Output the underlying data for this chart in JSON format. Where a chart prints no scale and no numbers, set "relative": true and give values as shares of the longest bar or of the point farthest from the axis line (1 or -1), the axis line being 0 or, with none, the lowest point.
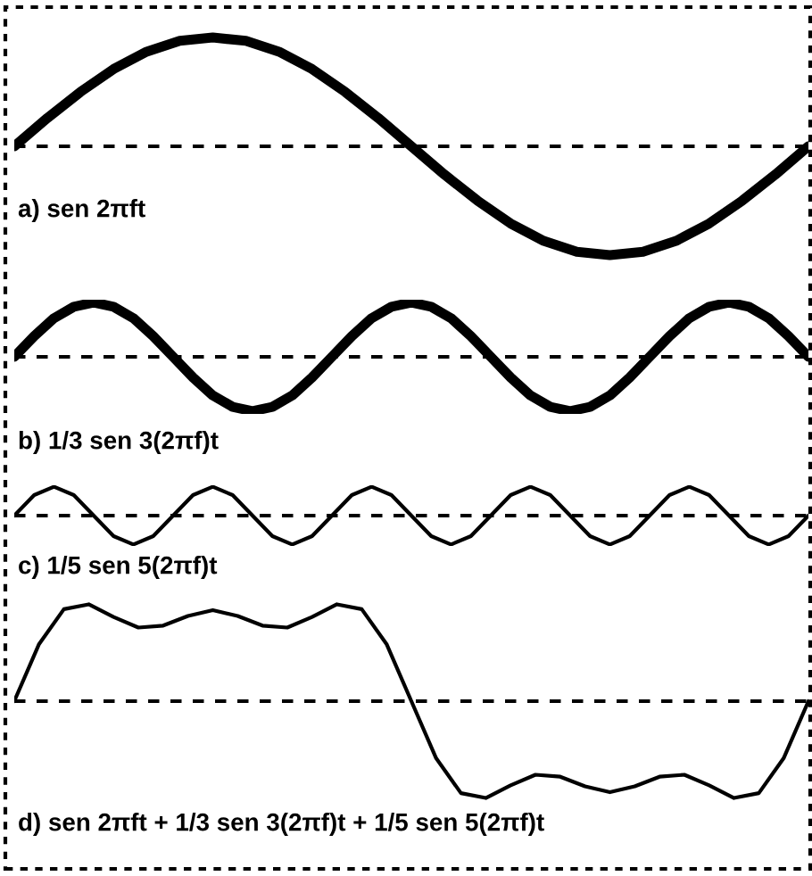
{
  "chart_data": [
    {
      "type": "line",
      "relative": true,
      "categories": [
        null,
        null,
        null,
        null,
        null,
        null,
        null,
        null,
        null,
        null,
        null,
        null,
        null,
        null,
        null,
        null,
        null,
        null,
        null,
        null,
        null,
        null,
        null,
        null,
        null
      ],
      "series": [
        {
          "color": "#000000",
          "values": [
            0,
            0.26,
            0.5,
            0.71,
            0.87,
            0.97,
            1,
            0.97,
            0.87,
            0.71,
            0.5,
            0.26,
            0,
            -0.26,
            -0.5,
            -0.71,
            -0.87,
            -0.97,
            -1,
            -0.97,
            -0.87,
            -0.71,
            -0.5,
            -0.26,
            0
          ]
        }
      ],
      "ref_lines": [
        {
          "axis": "y",
          "value": 0,
          "line_style": "dashed"
        }
      ],
      "annotations": [
        "a) sen 2πft"
      ]
    },
    {
      "type": "line",
      "relative": true,
      "categories": [
        null,
        null,
        null,
        null,
        null,
        null,
        null,
        null,
        null,
        null,
        null,
        null,
        null,
        null,
        null,
        null,
        null,
        null,
        null,
        null,
        null,
        null,
        null,
        null,
        null,
        null,
        null,
        null,
        null,
        null,
        null,
        null,
        null,
        null,
        null,
        null,
        null,
        null,
        null,
        null,
        null
      ],
      "series": [
        {
          "color": "#000000",
          "values": [
            0,
            0.38,
            0.71,
            0.92,
            1,
            0.92,
            0.71,
            0.38,
            0,
            -0.38,
            -0.71,
            -0.92,
            -1,
            -0.92,
            -0.71,
            -0.38,
            0,
            0.38,
            0.71,
            0.92,
            1,
            0.92,
            0.71,
            0.38,
            0,
            -0.38,
            -0.71,
            -0.92,
            -1,
            -0.92,
            -0.71,
            -0.38,
            0,
            0.38,
            0.71,
            0.92,
            1,
            0.92,
            0.71,
            0.38,
            0
          ]
        }
      ],
      "ref_lines": [
        {
          "axis": "y",
          "value": 0,
          "line_style": "dashed"
        }
      ],
      "annotations": [
        "b) 1/3 sen 3(2πf)t"
      ]
    },
    {
      "type": "line",
      "relative": true,
      "categories": [
        null,
        null,
        null,
        null,
        null,
        null,
        null,
        null,
        null,
        null,
        null,
        null,
        null,
        null,
        null,
        null,
        null,
        null,
        null,
        null,
        null,
        null,
        null,
        null,
        null,
        null,
        null,
        null,
        null,
        null,
        null,
        null,
        null,
        null,
        null,
        null,
        null,
        null,
        null,
        null,
        null
      ],
      "series": [
        {
          "color": "#000000",
          "values": [
            0,
            0.71,
            1,
            0.71,
            0,
            -0.71,
            -1,
            -0.71,
            0,
            0.71,
            1,
            0.71,
            0,
            -0.71,
            -1,
            -0.71,
            0,
            0.71,
            1,
            0.71,
            0,
            -0.71,
            -1,
            -0.71,
            0,
            0.71,
            1,
            0.71,
            0,
            -0.71,
            -1,
            -0.71,
            0,
            0.71,
            1,
            0.71,
            0,
            -0.71,
            -1,
            -0.71,
            0
          ]
        }
      ],
      "ref_lines": [
        {
          "axis": "y",
          "value": 0,
          "line_style": "dashed"
        }
      ],
      "annotations": [
        "c) 1/5 sen 5(2πf)t"
      ]
    },
    {
      "type": "line",
      "relative": true,
      "categories": [
        null,
        null,
        null,
        null,
        null,
        null,
        null,
        null,
        null,
        null,
        null,
        null,
        null,
        null,
        null,
        null,
        null,
        null,
        null,
        null,
        null,
        null,
        null,
        null,
        null,
        null,
        null,
        null,
        null,
        null,
        null,
        null,
        null
      ],
      "series": [
        {
          "color": "#000000",
          "values": [
            0,
            0.59,
            0.95,
            1,
            0.87,
            0.76,
            0.78,
            0.88,
            0.94,
            0.88,
            0.78,
            0.76,
            0.87,
            1,
            0.95,
            0.59,
            0,
            -0.59,
            -0.95,
            -1,
            -0.87,
            -0.76,
            -0.78,
            -0.88,
            -0.94,
            -0.88,
            -0.78,
            -0.76,
            -0.87,
            -1,
            -0.95,
            -0.59,
            0
          ]
        }
      ],
      "ref_lines": [
        {
          "axis": "y",
          "value": 0,
          "line_style": "dashed"
        }
      ],
      "annotations": [
        "d) sen 2πft + 1/3 sen 3(2πf)t + 1/5 sen 5(2πf)t"
      ]
    }
  ]
}
